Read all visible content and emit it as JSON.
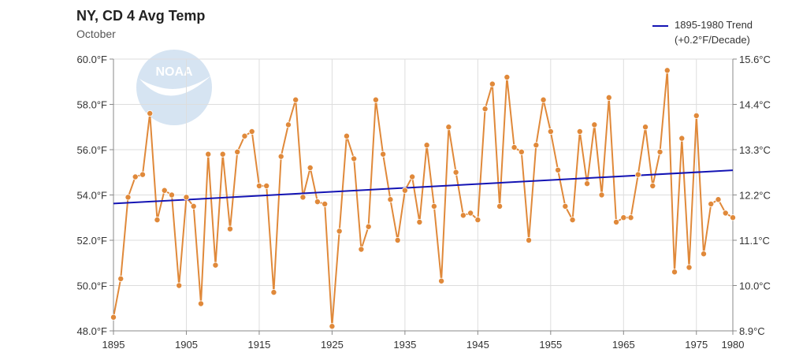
{
  "header": {
    "title": "NY, CD 4 Avg Temp",
    "subtitle": "October"
  },
  "legend": {
    "line1": "1895-1980 Trend",
    "line2": "(+0.2°F/Decade)"
  },
  "colors": {
    "series": "#e0893a",
    "trend": "#1414b4",
    "grid": "#dddddd",
    "logo": "#d6e4f2"
  },
  "logo": {
    "label": "NOAA"
  },
  "chart_data": {
    "type": "line",
    "title": "NY, CD 4 Avg Temp",
    "subtitle": "October",
    "xlim": [
      1895,
      1980
    ],
    "ylim": [
      48.0,
      60.0
    ],
    "x_ticks": [
      {
        "value": 1895,
        "label": "1895"
      },
      {
        "value": 1905,
        "label": "1905"
      },
      {
        "value": 1915,
        "label": "1915"
      },
      {
        "value": 1925,
        "label": "1925"
      },
      {
        "value": 1935,
        "label": "1935"
      },
      {
        "value": 1945,
        "label": "1945"
      },
      {
        "value": 1955,
        "label": "1955"
      },
      {
        "value": 1965,
        "label": "1965"
      },
      {
        "value": 1975,
        "label": "1975"
      },
      {
        "value": 1980,
        "label": "1980"
      }
    ],
    "y_ticks_left": [
      {
        "value": 60,
        "label": "60.0°F"
      },
      {
        "value": 58,
        "label": "58.0°F"
      },
      {
        "value": 56,
        "label": "56.0°F"
      },
      {
        "value": 54,
        "label": "54.0°F"
      },
      {
        "value": 52,
        "label": "52.0°F"
      },
      {
        "value": 50,
        "label": "50.0°F"
      },
      {
        "value": 48,
        "label": "48.0°F"
      }
    ],
    "y_ticks_right": [
      {
        "value": 60.0,
        "label": "15.6°C"
      },
      {
        "value": 58.0,
        "label": "14.4°C"
      },
      {
        "value": 56.0,
        "label": "13.3°C"
      },
      {
        "value": 54.0,
        "label": "12.2°C"
      },
      {
        "value": 52.0,
        "label": "11.1°C"
      },
      {
        "value": 50.0,
        "label": "10.0°C"
      },
      {
        "value": 48.0,
        "label": "8.9°C"
      }
    ],
    "grid": true,
    "legend_position": "top-right",
    "series": [
      {
        "x": [
          1895,
          1896,
          1897,
          1898,
          1899,
          1900,
          1901,
          1902,
          1903,
          1904,
          1905,
          1906,
          1907,
          1908,
          1909,
          1910,
          1911,
          1912,
          1913,
          1914,
          1915,
          1916,
          1917,
          1918,
          1919,
          1920,
          1921,
          1922,
          1923,
          1924,
          1925,
          1926,
          1927,
          1928,
          1929,
          1930,
          1931,
          1932,
          1933,
          1934,
          1935,
          1936,
          1937,
          1938,
          1939,
          1940,
          1941,
          1942,
          1943,
          1944,
          1945,
          1946,
          1947,
          1948,
          1949,
          1950,
          1951,
          1952,
          1953,
          1954,
          1955,
          1956,
          1957,
          1958,
          1959,
          1960,
          1961,
          1962,
          1963,
          1964,
          1965,
          1966,
          1967,
          1968,
          1969,
          1970,
          1971,
          1972,
          1973,
          1974,
          1975,
          1976,
          1977,
          1978,
          1979,
          1980
        ],
        "y": [
          48.6,
          50.3,
          53.9,
          54.8,
          54.9,
          57.6,
          52.9,
          54.2,
          54.0,
          50.0,
          53.9,
          53.5,
          49.2,
          55.8,
          50.9,
          55.8,
          52.5,
          55.9,
          56.6,
          56.8,
          54.4,
          54.4,
          49.7,
          55.7,
          57.1,
          58.2,
          53.9,
          55.2,
          53.7,
          53.6,
          48.2,
          52.4,
          56.6,
          55.6,
          51.6,
          52.6,
          58.2,
          55.8,
          53.8,
          52.0,
          54.2,
          54.8,
          52.8,
          56.2,
          53.5,
          50.2,
          57.0,
          55.0,
          53.1,
          53.2,
          52.9,
          57.8,
          58.9,
          53.5,
          59.2,
          56.1,
          55.9,
          52.0,
          56.2,
          58.2,
          56.8,
          55.1,
          53.5,
          52.9,
          56.8,
          54.5,
          57.1,
          54.0,
          58.3,
          52.8,
          53.0,
          53.0,
          54.9,
          57.0,
          54.4,
          55.9,
          59.5,
          50.6,
          56.5,
          50.8,
          57.5,
          51.4,
          53.6,
          53.8,
          53.2,
          53.0
        ]
      },
      {
        "name": "1895-1980 Trend",
        "x": [
          1895,
          1980
        ],
        "y": [
          53.62,
          55.09
        ]
      }
    ]
  }
}
